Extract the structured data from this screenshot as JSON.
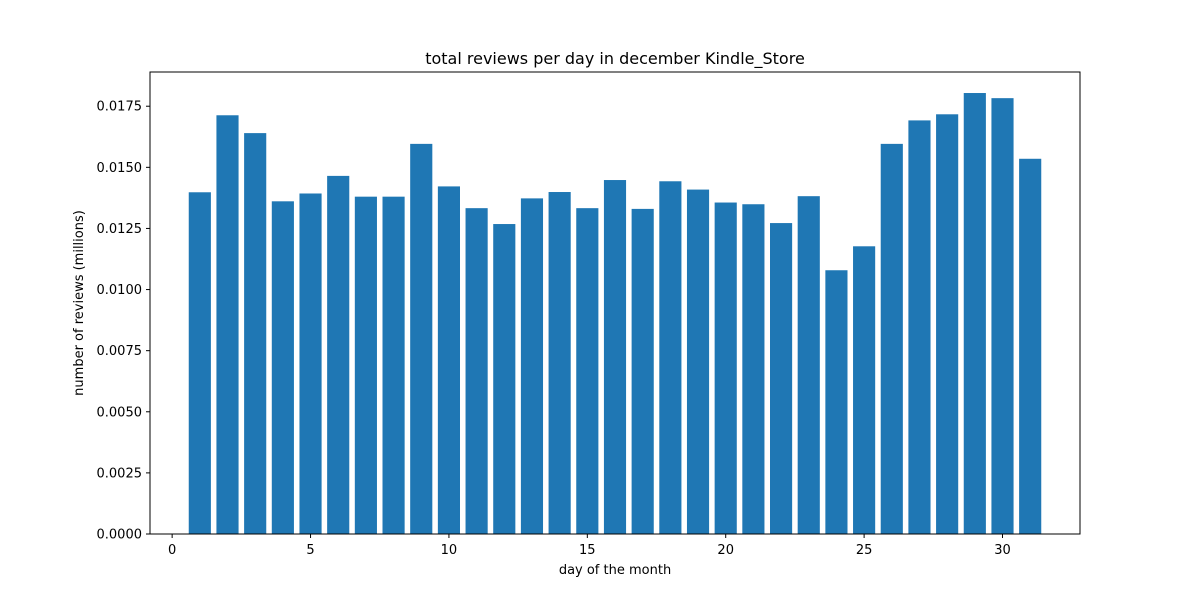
{
  "chart_data": {
    "type": "bar",
    "title": "total reviews per day in december Kindle_Store",
    "xlabel": "day of the month",
    "ylabel": "number of reviews (millions)",
    "x": [
      1,
      2,
      3,
      4,
      5,
      6,
      7,
      8,
      9,
      10,
      11,
      12,
      13,
      14,
      15,
      16,
      17,
      18,
      19,
      20,
      21,
      22,
      23,
      24,
      25,
      26,
      27,
      28,
      29,
      30,
      31
    ],
    "values": [
      0.01398,
      0.01713,
      0.0164,
      0.01361,
      0.01393,
      0.01465,
      0.0138,
      0.0138,
      0.01596,
      0.01422,
      0.01333,
      0.01268,
      0.01373,
      0.01399,
      0.01333,
      0.01448,
      0.0133,
      0.01443,
      0.01409,
      0.01356,
      0.01349,
      0.01272,
      0.01382,
      0.01079,
      0.01177,
      0.01596,
      0.01692,
      0.01717,
      0.01804,
      0.01783,
      0.01535
    ],
    "xlim": [
      -0.8,
      32.8
    ],
    "ylim": [
      0,
      0.0189
    ],
    "xticks": [
      0,
      5,
      10,
      15,
      20,
      25,
      30
    ],
    "xtick_labels": [
      "0",
      "5",
      "10",
      "15",
      "20",
      "25",
      "30"
    ],
    "yticks": [
      0,
      0.0025,
      0.005,
      0.0075,
      0.01,
      0.0125,
      0.015,
      0.0175
    ],
    "ytick_labels": [
      "0.0000",
      "0.0025",
      "0.0050",
      "0.0075",
      "0.0100",
      "0.0125",
      "0.0150",
      "0.0175"
    ],
    "bar_color": "#1f77b4",
    "grid": false,
    "legend": "none"
  }
}
